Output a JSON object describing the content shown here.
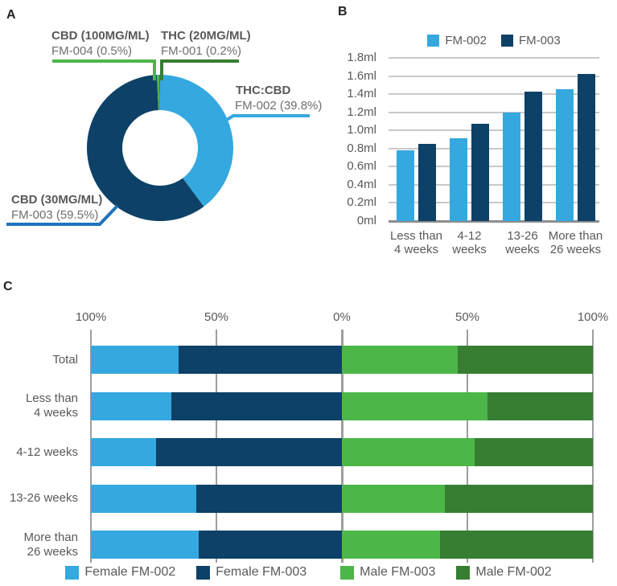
{
  "panels": {
    "a": {
      "letter": "A"
    },
    "b": {
      "letter": "B"
    },
    "c": {
      "letter": "C"
    }
  },
  "colors": {
    "light_blue": "#35A8E0",
    "navy": "#0D4167",
    "light_green": "#4CB648",
    "dark_green": "#377E33",
    "callout_blue": "#1E74BB",
    "grid_light": "#C9C9C9",
    "baseline_gray": "#8E8E8E",
    "grid_vertical": "#9E9E9E",
    "text_dark": "#58595B",
    "text_sub": "#6D6E71"
  },
  "chart_data": [
    {
      "id": "product-share-donut",
      "type": "pie",
      "donut": true,
      "slices": [
        {
          "label": "THC:CBD",
          "sublabel": "FM-002 (39.8%)",
          "value": 39.8,
          "color": "light_blue"
        },
        {
          "label": "CBD (30MG/ML)",
          "sublabel": "FM-003 (59.5%)",
          "value": 59.5,
          "color": "navy"
        },
        {
          "label": "CBD (100MG/ML)",
          "sublabel": "FM-004 (0.5%)",
          "value": 0.5,
          "color": "light_green"
        },
        {
          "label": "THC (20MG/ML)",
          "sublabel": "FM-001 (0.2%)",
          "value": 0.2,
          "color": "dark_green"
        }
      ]
    },
    {
      "id": "dose-by-duration-bars",
      "type": "bar",
      "categories": [
        "Less than\n4 weeks",
        "4-12\nweeks",
        "13-26\nweeks",
        "More than\n26 weeks"
      ],
      "series": [
        {
          "name": "FM-002",
          "color": "light_blue",
          "values": [
            0.78,
            0.91,
            1.2,
            1.45
          ]
        },
        {
          "name": "FM-003",
          "color": "navy",
          "values": [
            0.85,
            1.07,
            1.43,
            1.62
          ]
        }
      ],
      "yticks": [
        "1.8ml",
        "1.6ml",
        "1.4ml",
        "1.2ml",
        "1.0ml",
        "0.8ml",
        "0.6ml",
        "0.4ml",
        "0.2ml",
        "0ml"
      ],
      "ymax": 1.8,
      "grid": true,
      "legend_position": "top"
    },
    {
      "id": "sex-by-duration-diverging",
      "type": "bar",
      "orientation": "horizontal-diverging",
      "categories": [
        "Total",
        "Less than\n4 weeks",
        "4-12 weeks",
        "13-26 weeks",
        "More than\n26 weeks"
      ],
      "xticks": [
        "100%",
        "50%",
        "0%",
        "50%",
        "100%"
      ],
      "axis_range_each_side": [
        0,
        100
      ],
      "series": [
        {
          "name": "Female FM-002",
          "side": "left",
          "color": "light_blue",
          "values": [
            35,
            32,
            26,
            42,
            43
          ]
        },
        {
          "name": "Female FM-003",
          "side": "left",
          "color": "navy",
          "values": [
            65,
            68,
            74,
            58,
            57
          ]
        },
        {
          "name": "Male FM-003",
          "side": "right",
          "color": "light_green",
          "values": [
            46,
            58,
            53,
            41,
            39
          ]
        },
        {
          "name": "Male FM-002",
          "side": "right",
          "color": "dark_green",
          "values": [
            54,
            42,
            47,
            59,
            61
          ]
        }
      ],
      "legend_position": "bottom"
    }
  ]
}
